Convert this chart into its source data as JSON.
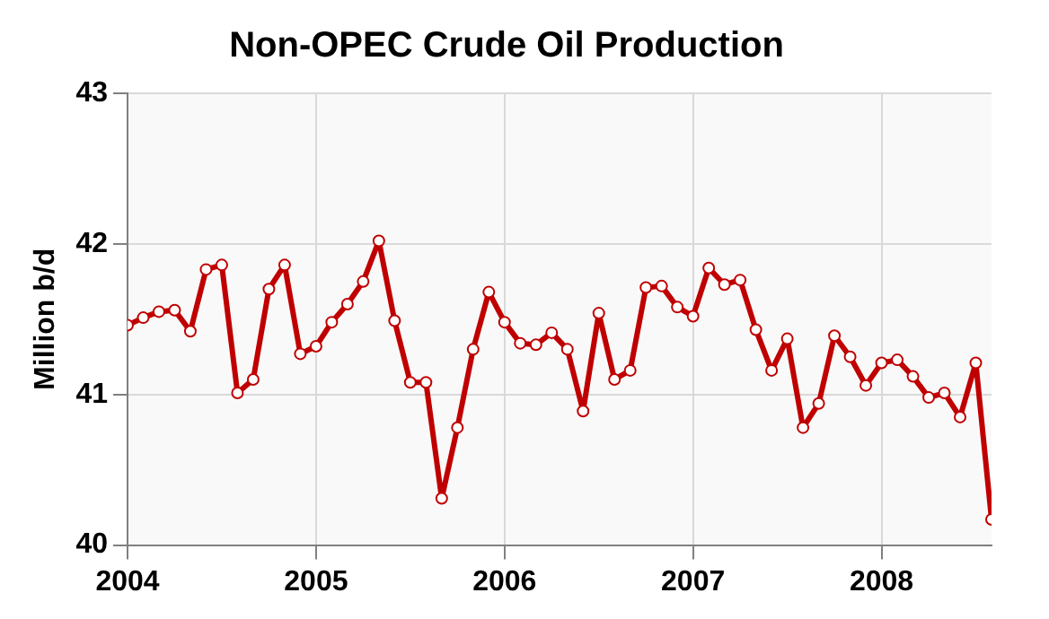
{
  "chart_data": {
    "type": "line",
    "title": "Non-OPEC Crude Oil Production",
    "ylabel": "Million b/d",
    "x": [
      "2004-01",
      "2004-02",
      "2004-03",
      "2004-04",
      "2004-05",
      "2004-06",
      "2004-07",
      "2004-08",
      "2004-09",
      "2004-10",
      "2004-11",
      "2004-12",
      "2005-01",
      "2005-02",
      "2005-03",
      "2005-04",
      "2005-05",
      "2005-06",
      "2005-07",
      "2005-08",
      "2005-09",
      "2005-10",
      "2005-11",
      "2005-12",
      "2006-01",
      "2006-02",
      "2006-03",
      "2006-04",
      "2006-05",
      "2006-06",
      "2006-07",
      "2006-08",
      "2006-09",
      "2006-10",
      "2006-11",
      "2006-12",
      "2007-01",
      "2007-02",
      "2007-03",
      "2007-04",
      "2007-05",
      "2007-06",
      "2007-07",
      "2007-08",
      "2007-09",
      "2007-10",
      "2007-11",
      "2007-12",
      "2008-01",
      "2008-02",
      "2008-03",
      "2008-04",
      "2008-05",
      "2008-06",
      "2008-07",
      "2008-08"
    ],
    "series": [
      {
        "color": "#c00000",
        "values": [
          41.46,
          41.51,
          41.55,
          41.56,
          41.42,
          41.83,
          41.86,
          41.01,
          41.1,
          41.7,
          41.86,
          41.27,
          41.32,
          41.48,
          41.6,
          41.75,
          42.02,
          41.49,
          41.08,
          41.08,
          40.31,
          40.78,
          41.3,
          41.68,
          41.48,
          41.34,
          41.33,
          41.41,
          41.3,
          40.89,
          41.54,
          41.1,
          41.16,
          41.71,
          41.72,
          41.58,
          41.52,
          41.84,
          41.73,
          41.76,
          41.43,
          41.16,
          41.37,
          40.78,
          40.94,
          41.39,
          41.25,
          41.06,
          41.21,
          41.23,
          41.12,
          40.98,
          41.01,
          40.85,
          41.21,
          40.17
        ]
      }
    ],
    "xlim": [
      "2004-01",
      "2008-08"
    ],
    "xticks": [
      "2004",
      "2005",
      "2006",
      "2007",
      "2008"
    ],
    "ylim": [
      40,
      43
    ],
    "yticks": [
      40,
      41,
      42,
      43
    ],
    "grid": true,
    "marker": "circle",
    "line_style": "solid",
    "legend": false
  }
}
